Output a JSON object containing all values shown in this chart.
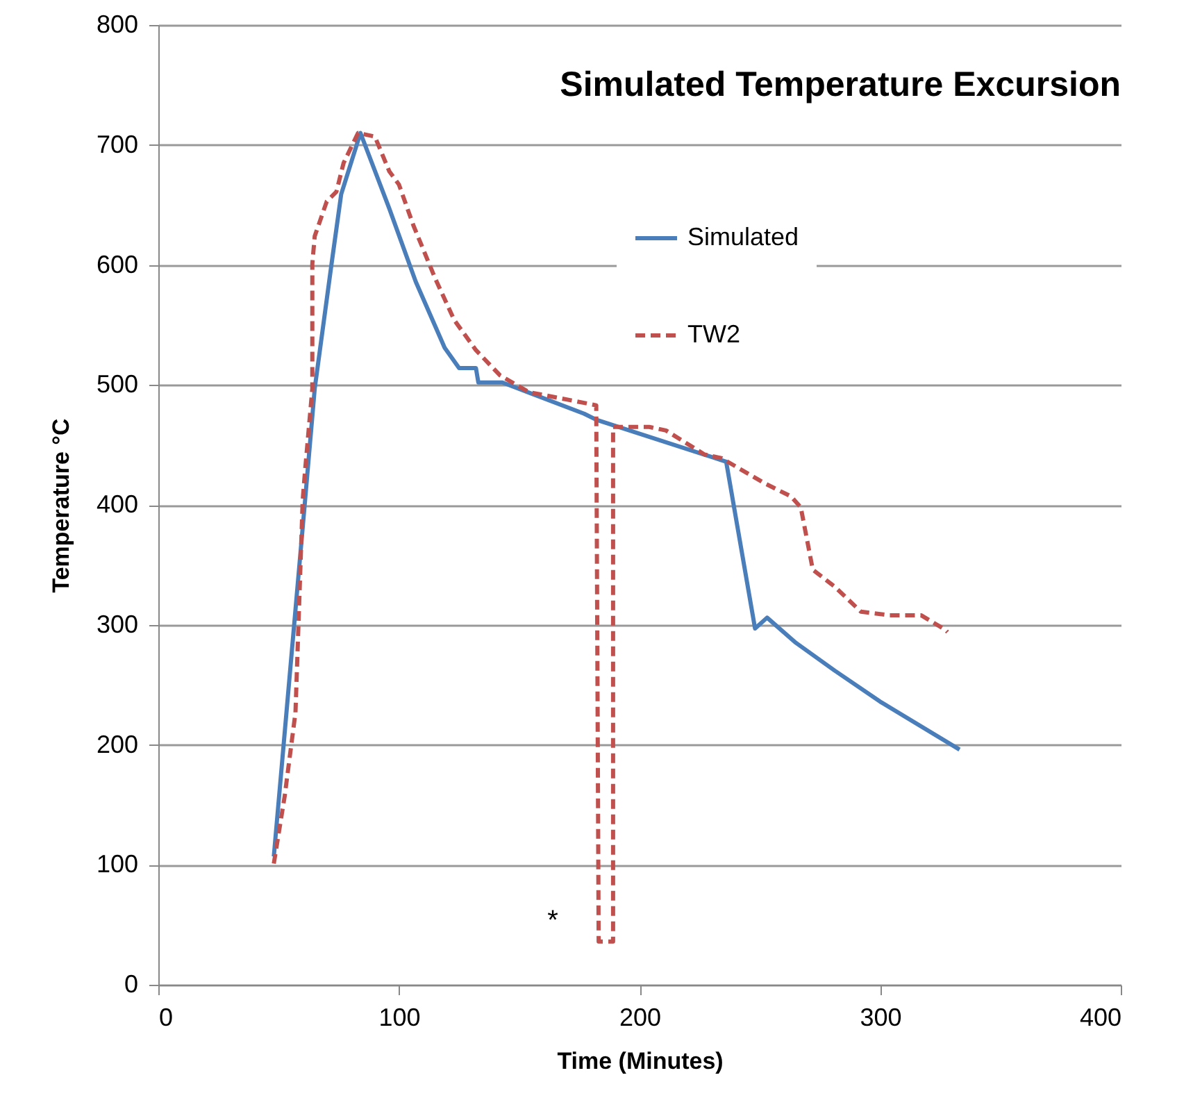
{
  "chart_data": {
    "type": "line",
    "title": "Simulated Temperature Excursion",
    "xlabel": "Time (Minutes)",
    "ylabel": "Temperature °C",
    "xlim": [
      0,
      400
    ],
    "xticks": [
      0,
      100,
      200,
      300,
      400
    ],
    "ylim": [
      0,
      800
    ],
    "yticks": [
      0,
      100,
      200,
      300,
      400,
      500,
      600,
      700,
      800
    ],
    "grid": "y",
    "legend": "top right",
    "marker": "none",
    "annotations": [
      "*"
    ],
    "series": [
      {
        "name": "Simulated",
        "color": "#4a7ebb",
        "line_style": "solid",
        "x": [
          48,
          61,
          65,
          72,
          76,
          84,
          96,
          107,
          119,
          125,
          132,
          133,
          143,
          177,
          182,
          236,
          248,
          253,
          265,
          281,
          300,
          333
        ],
        "values": [
          107,
          404,
          497,
          601,
          659,
          710,
          647,
          586,
          531,
          514,
          514,
          502,
          502,
          476,
          471,
          436,
          297,
          306,
          285,
          262,
          236,
          196
        ]
      },
      {
        "name": "TW2",
        "color": "#c0504d",
        "line_style": "dashed",
        "x": [
          48,
          52.5,
          57,
          60,
          61,
          64,
          64,
          65,
          70,
          74,
          77,
          83,
          90,
          96,
          100,
          106,
          115,
          123,
          132,
          142,
          154,
          177,
          182,
          183,
          189,
          189,
          204,
          211,
          227,
          234,
          252,
          263,
          267,
          272,
          281,
          292,
          304,
          317,
          327,
          328
        ],
        "values": [
          101,
          157,
          227,
          404,
          429,
          497,
          601,
          624,
          653,
          661,
          685,
          710,
          707,
          678,
          667,
          633,
          589,
          554,
          529,
          508,
          494,
          485,
          483,
          36,
          36,
          465,
          465,
          462,
          442,
          439,
          418,
          407,
          398,
          346,
          332,
          311,
          308,
          308,
          296,
          294
        ]
      }
    ]
  }
}
